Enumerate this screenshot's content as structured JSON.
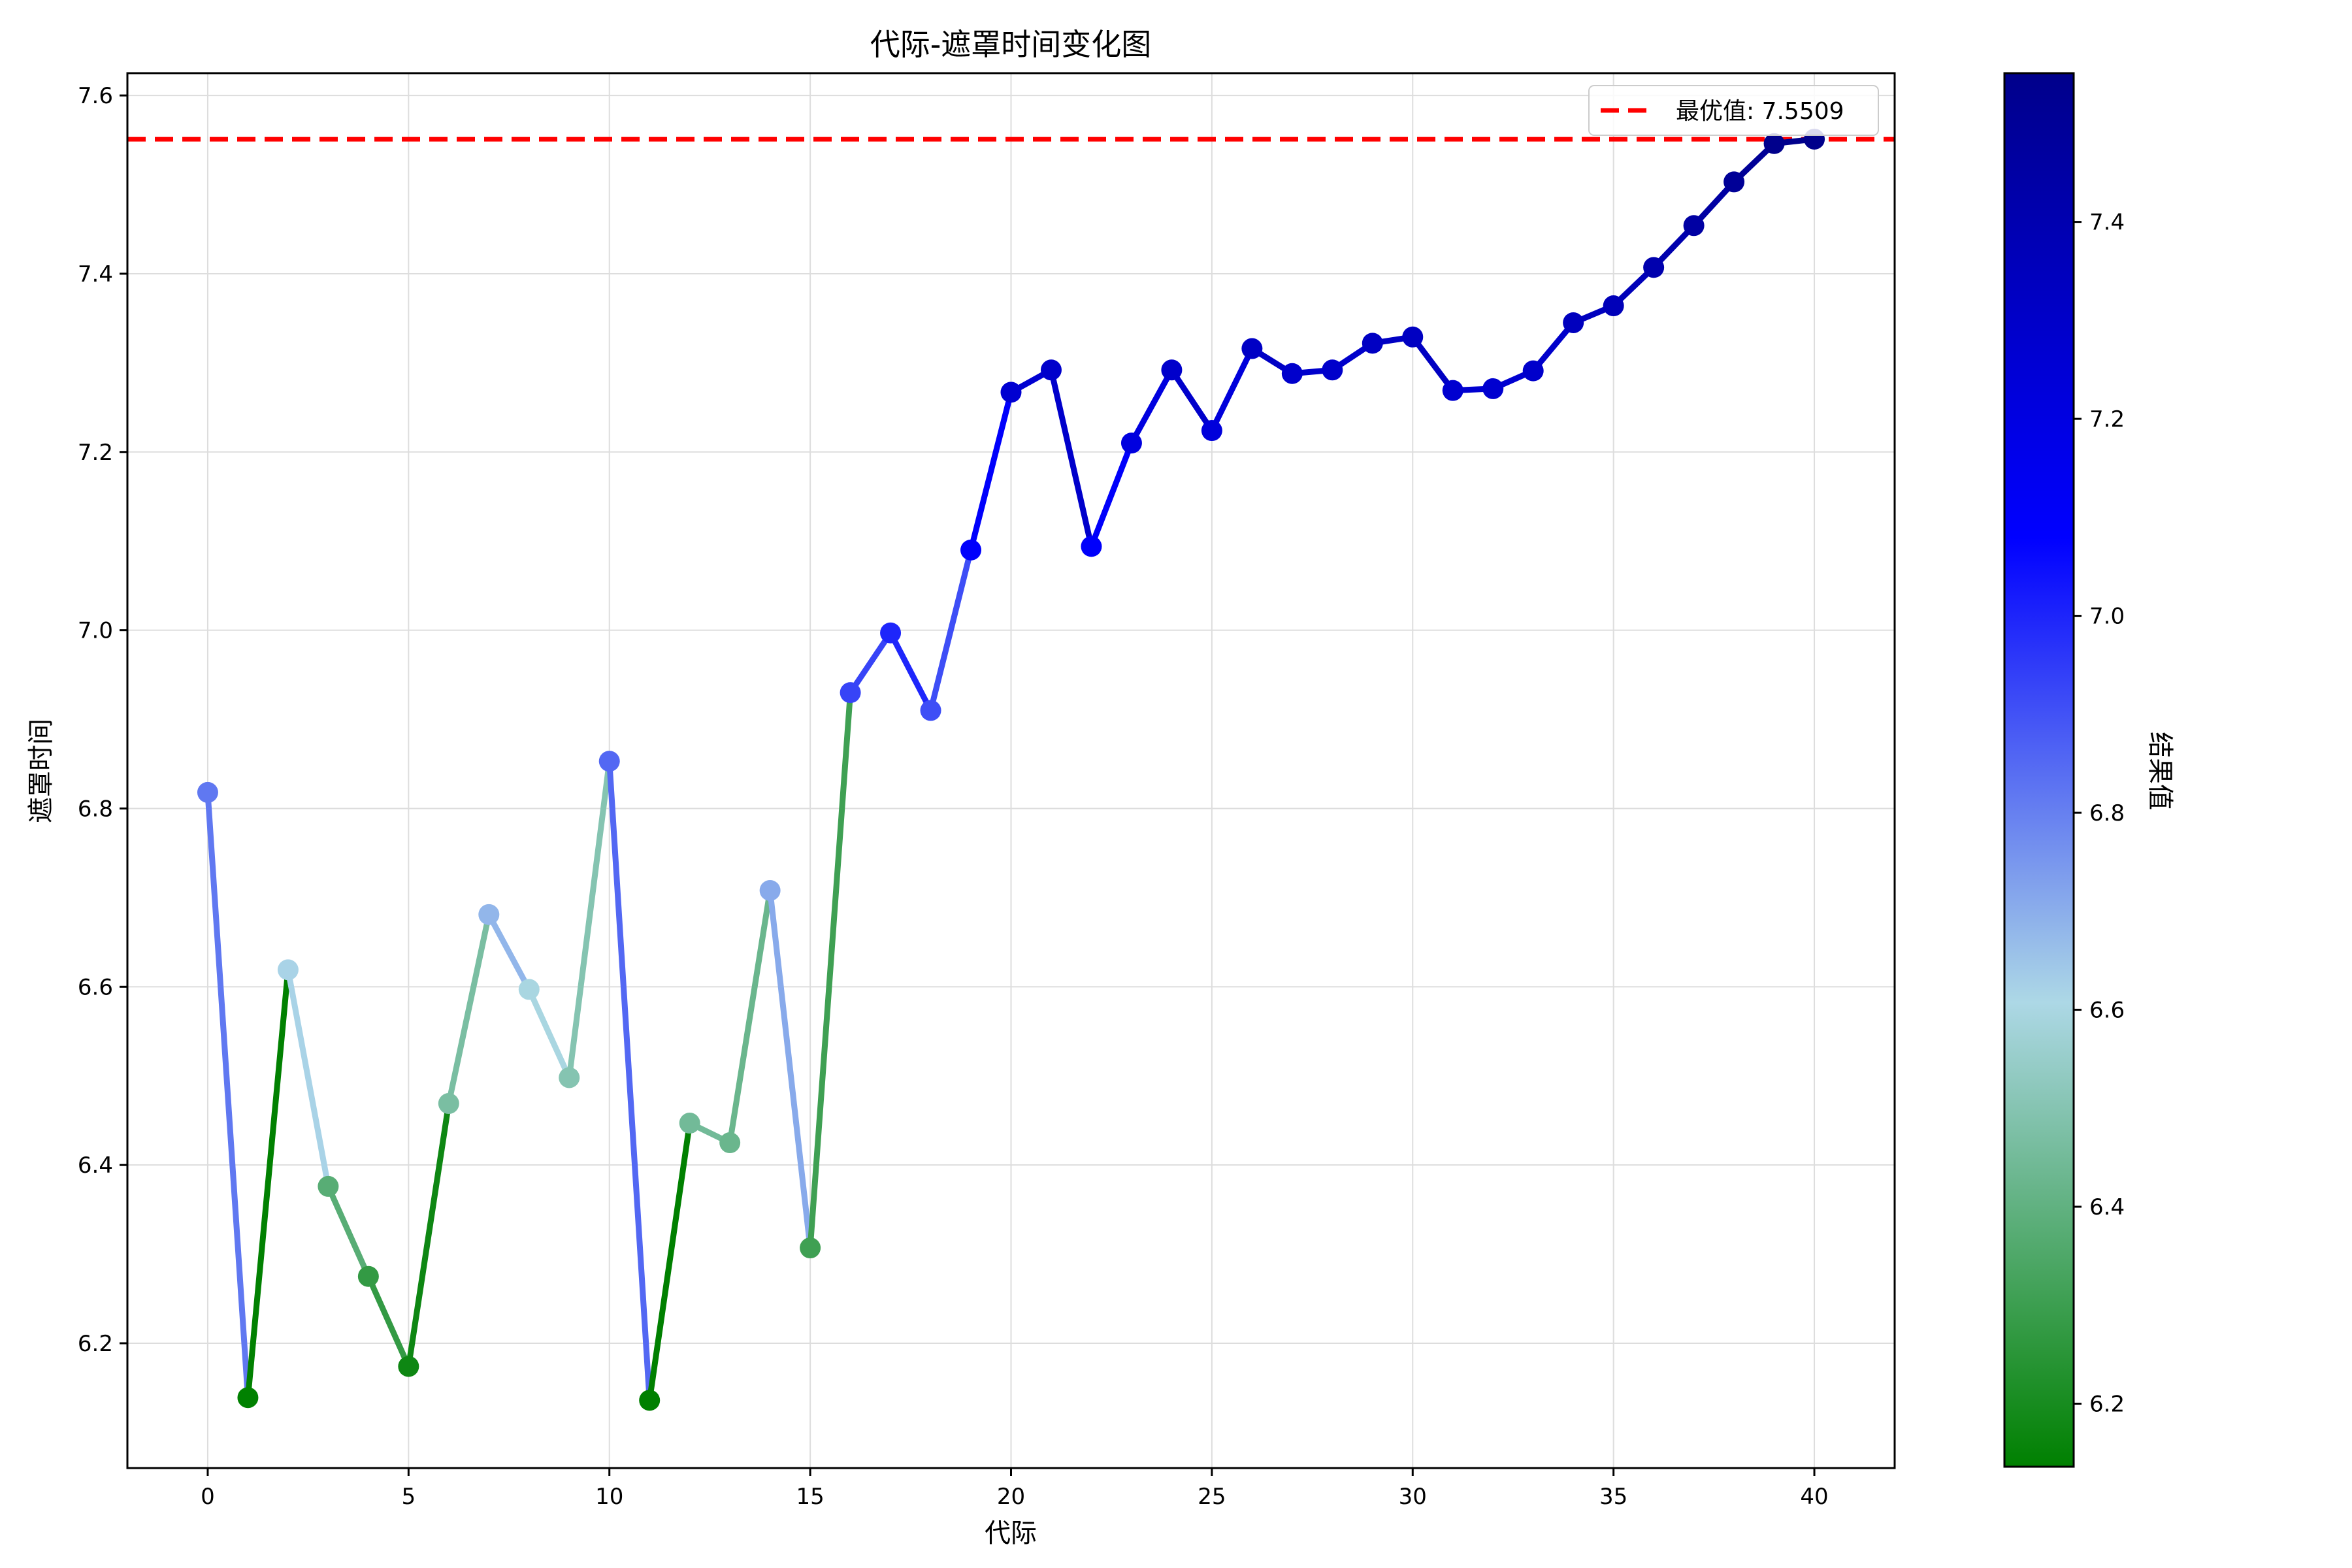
{
  "chart_data": {
    "type": "line",
    "title": "代际-遮罩时间变化图",
    "xlabel": "代际",
    "ylabel": "遮罩时间",
    "xlim": [
      -2,
      42
    ],
    "ylim": [
      6.06,
      7.625
    ],
    "x_ticks": [
      0,
      5,
      10,
      15,
      20,
      25,
      30,
      35,
      40
    ],
    "y_ticks": [
      6.2,
      6.4,
      6.6,
      6.8,
      7.0,
      7.2,
      7.4,
      7.6
    ],
    "x_tick_labels": [
      "0",
      "5",
      "10",
      "15",
      "20",
      "25",
      "30",
      "35",
      "40"
    ],
    "y_tick_labels": [
      "6.2",
      "6.4",
      "6.6",
      "6.8",
      "7.0",
      "7.2",
      "7.4",
      "7.6"
    ],
    "grid": true,
    "x": [
      0,
      1,
      2,
      3,
      4,
      5,
      6,
      7,
      8,
      9,
      10,
      11,
      12,
      13,
      14,
      15,
      16,
      17,
      18,
      19,
      20,
      21,
      22,
      23,
      24,
      25,
      26,
      27,
      28,
      29,
      30,
      31,
      32,
      33,
      34,
      35,
      36,
      37,
      38,
      39,
      40
    ],
    "values": [
      6.818,
      6.139,
      6.619,
      6.376,
      6.275,
      6.174,
      6.469,
      6.681,
      6.597,
      6.498,
      6.853,
      6.136,
      6.447,
      6.425,
      6.708,
      6.307,
      6.93,
      6.997,
      6.91,
      7.09,
      7.267,
      7.292,
      7.094,
      7.21,
      7.292,
      7.224,
      7.316,
      7.288,
      7.292,
      7.322,
      7.329,
      7.269,
      7.271,
      7.291,
      7.345,
      7.364,
      7.407,
      7.454,
      7.503,
      7.546,
      7.551
    ],
    "best_line": {
      "value": 7.5509,
      "label": "最优值: 7.5509",
      "color": "#ff0000",
      "style": "dashed"
    },
    "legend_position": "top-right",
    "colorbar": {
      "label": "结果值",
      "range": [
        6.136,
        7.551
      ],
      "ticks": [
        6.2,
        6.4,
        6.6,
        6.8,
        7.0,
        7.2,
        7.4
      ],
      "tick_labels": [
        "6.2",
        "6.4",
        "6.6",
        "6.8",
        "7.0",
        "7.2",
        "7.4"
      ],
      "colormap": [
        "#008000",
        "#add8e6",
        "#0000ff",
        "#00008b"
      ]
    }
  }
}
